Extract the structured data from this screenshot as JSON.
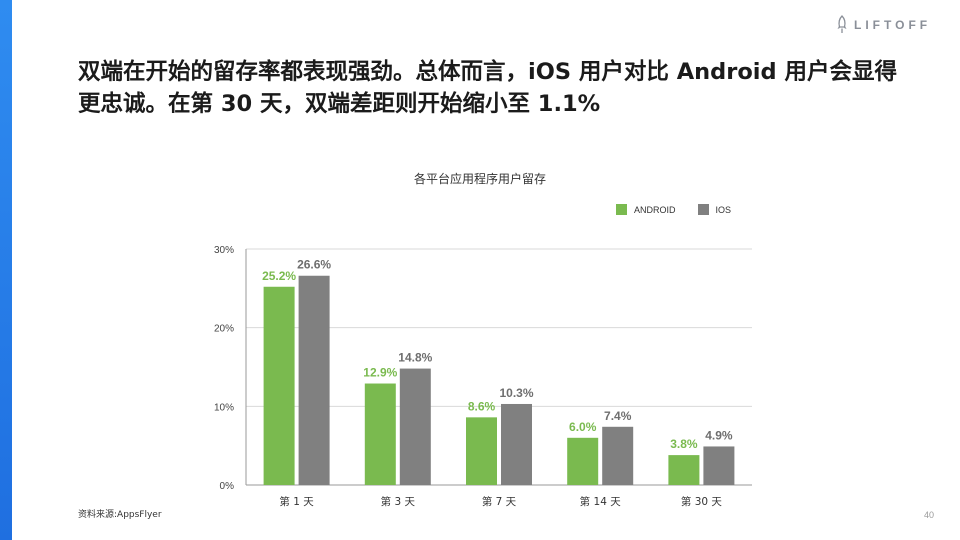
{
  "brand": {
    "logo_text": "LIFTOFF",
    "logo_icon": "rocket-icon",
    "accent_color": "#2f8cf0"
  },
  "header": {
    "title": "双端在开始的留存率都表现强劲。总体而言，iOS 用户对比 Android 用户会显得更忠诚。在第 30 天，双端差距则开始缩小至 1.1%"
  },
  "chart_data": {
    "type": "bar",
    "title": "各平台应用程序用户留存",
    "categories": [
      "第 1 天",
      "第 3 天",
      "第 7 天",
      "第 14 天",
      "第 30 天"
    ],
    "series": [
      {
        "name": "ANDROID",
        "color": "#7aba4f",
        "label_color": "#7aba4f",
        "values": [
          25.2,
          12.9,
          8.6,
          6.0,
          3.8
        ]
      },
      {
        "name": "IOS",
        "color": "#808080",
        "label_color": "#6e6e6e",
        "values": [
          26.6,
          14.8,
          10.3,
          7.4,
          4.9
        ]
      }
    ],
    "value_suffix": "%",
    "ylim": [
      0,
      30
    ],
    "yticks": [
      "0%",
      "10%",
      "20%",
      "30%"
    ],
    "ytick_values": [
      0,
      10,
      20,
      30
    ],
    "grid": true,
    "legend_position": "top-right"
  },
  "footer": {
    "source": "资料来源:AppsFlyer",
    "page_number": "40"
  }
}
